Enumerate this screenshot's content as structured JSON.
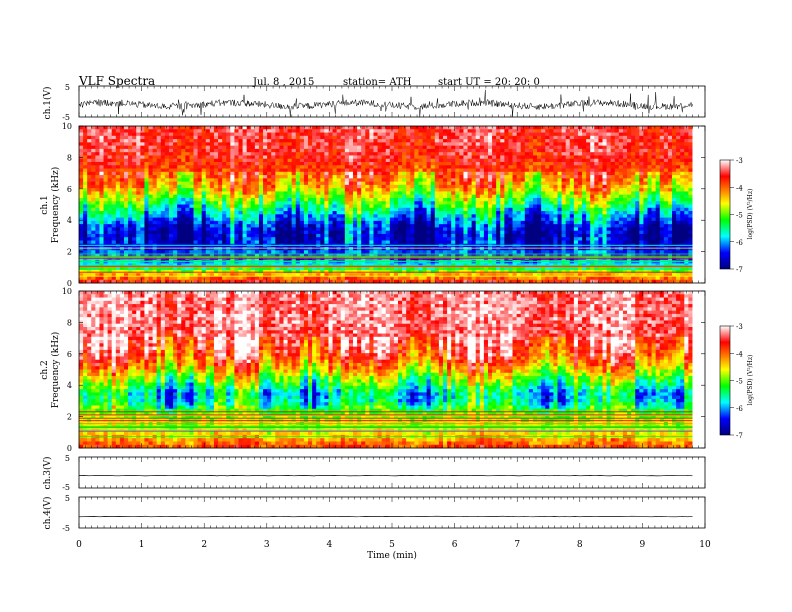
{
  "header": {
    "title": "VLF  Spectra",
    "date": "Jul.  8  , 2015",
    "station": "station= ATH",
    "start": "start  UT  =    20: 20: 0"
  },
  "panels": {
    "ch1_waveform": {
      "ylabel": "ch.1(V)",
      "ticks": [
        "5",
        "-5"
      ]
    },
    "ch1_spectrogram": {
      "ylabel_ch": "ch.1",
      "ylabel_freq": "Frequency  (kHz)",
      "ticks": [
        "10",
        "8",
        "6",
        "4",
        "2",
        "0"
      ]
    },
    "ch2_spectrogram": {
      "ylabel_ch": "ch.2",
      "ylabel_freq": "Frequency  (kHz)",
      "ticks": [
        "10",
        "8",
        "6",
        "4",
        "2",
        "0"
      ]
    },
    "ch3_waveform": {
      "ylabel": "ch.3(V)",
      "ticks": [
        "5",
        "-5"
      ]
    },
    "ch4_waveform": {
      "ylabel": "ch.4(V)",
      "ticks": [
        "5",
        "-5"
      ]
    }
  },
  "xaxis": {
    "label": "Time  (min)",
    "ticks": [
      "0",
      "1",
      "2",
      "3",
      "4",
      "5",
      "6",
      "7",
      "8",
      "9",
      "10"
    ]
  },
  "colorbar": {
    "label": "log(PSD) (V²/Hz)",
    "ticks": [
      "-3",
      "-4",
      "-5",
      "-6",
      "-7"
    ]
  },
  "chart_data": {
    "type": "heatmap",
    "x_unit": "min",
    "xlim": [
      0,
      10
    ],
    "data_end_min": 9.8,
    "waveform_ylim": [
      -5,
      5
    ],
    "freq_ylim_khz": [
      0,
      10
    ],
    "colorbar_range": [
      -7,
      -3
    ],
    "ch1_waveform_level_v": -1,
    "ch3_waveform_level_v": -1,
    "ch4_waveform_level_v": -1.3,
    "ch1_spectrum_profile": {
      "freq_khz": [
        0,
        0.5,
        1,
        1.5,
        2,
        2.5,
        3,
        3.5,
        4,
        4.5,
        5,
        5.5,
        6,
        7,
        8,
        9,
        10
      ],
      "log_psd": [
        -3.6,
        -4.3,
        -5.5,
        -6.1,
        -6.2,
        -6.6,
        -6.7,
        -6.6,
        -6.2,
        -5.8,
        -5.3,
        -4.9,
        -4.4,
        -3.9,
        -3.6,
        -3.5,
        -3.5
      ]
    },
    "ch2_spectrum_profile": {
      "freq_khz": [
        0,
        0.5,
        1,
        1.5,
        2,
        2.5,
        3,
        3.5,
        4,
        4.5,
        5,
        5.5,
        6,
        7,
        8,
        9,
        10
      ],
      "log_psd": [
        -3.8,
        -4.2,
        -4.6,
        -4.8,
        -4.9,
        -5.3,
        -5.7,
        -5.8,
        -5.3,
        -4.9,
        -4.4,
        -4.0,
        -3.7,
        -3.4,
        -3.3,
        -3.3,
        -3.3
      ]
    },
    "colors": {
      "scale": [
        "#000080",
        "#0000ff",
        "#00ffff",
        "#00ff00",
        "#ffff00",
        "#ff8000",
        "#ff0000",
        "#ffffff"
      ]
    }
  }
}
